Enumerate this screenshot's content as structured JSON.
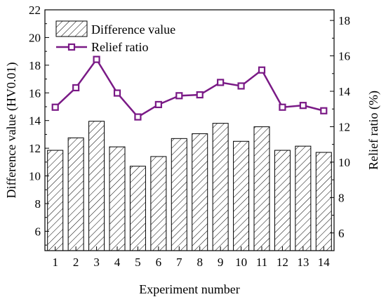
{
  "chart_data": {
    "type": "bar+line",
    "categories": [
      "1",
      "2",
      "3",
      "4",
      "5",
      "6",
      "7",
      "8",
      "9",
      "10",
      "11",
      "12",
      "13",
      "14"
    ],
    "series": [
      {
        "name": "Difference value",
        "kind": "bar",
        "axis": "left",
        "values": [
          11.85,
          12.75,
          13.95,
          12.1,
          10.7,
          11.4,
          12.7,
          13.05,
          13.8,
          12.5,
          13.55,
          11.85,
          12.15,
          11.7
        ]
      },
      {
        "name": "Relief ratio",
        "kind": "line",
        "axis": "right",
        "color": "#7a1a86",
        "values": [
          13.1,
          14.2,
          15.8,
          13.9,
          12.55,
          13.25,
          13.75,
          13.8,
          14.5,
          14.3,
          15.2,
          13.1,
          13.2,
          12.9
        ]
      }
    ],
    "xlabel": "Experiment number",
    "ylabel": "Difference value (HV0.01)",
    "y2label": "Relief ratio (%)",
    "ylim": [
      4.6,
      22
    ],
    "y2lim": [
      5,
      18.6
    ],
    "yticks": [
      6,
      8,
      10,
      12,
      14,
      16,
      18,
      20,
      22
    ],
    "y2ticks": [
      6,
      8,
      10,
      12,
      14,
      16,
      18
    ],
    "legend": {
      "position": "top-left",
      "entries": [
        "Difference value",
        "Relief ratio"
      ]
    },
    "grid": false
  }
}
